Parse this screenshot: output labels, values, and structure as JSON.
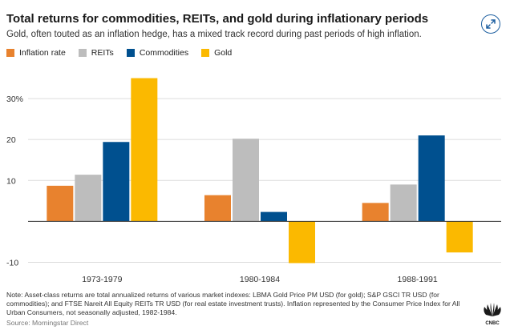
{
  "header": {
    "title": "Total returns for commodities, REITs, and gold during inflationary periods",
    "subtitle": "Gold, often touted as an inflation hedge, has a mixed track record during past periods of high inflation."
  },
  "footer": {
    "note": "Note: Asset-class returns are total annualized returns of various market indexes: LBMA Gold Price PM USD (for gold); S&P GSCI TR USD (for commodities); and FTSE Nareit All Equity REITs TR USD (for real estate investment trusts). Inflation represented by the Consumer Price Index for All Urban Consumers, not seasonally adjusted, 1982-1984.",
    "source": "Source: Morningstar Direct",
    "logo_text": "CNBC"
  },
  "icons": {
    "expand": "expand-icon",
    "logo": "cnbc-peacock-icon"
  },
  "chart_data": {
    "type": "bar",
    "categories": [
      "1973-1979",
      "1980-1984",
      "1988-1991"
    ],
    "series": [
      {
        "name": "Inflation rate",
        "color": "#e8822e",
        "values": [
          8.7,
          6.4,
          4.5
        ]
      },
      {
        "name": "REITs",
        "color": "#bdbdbd",
        "values": [
          11.4,
          20.2,
          9.0
        ]
      },
      {
        "name": "Commodities",
        "color": "#00508f",
        "values": [
          19.4,
          2.3,
          21.0
        ]
      },
      {
        "name": "Gold",
        "color": "#fbb900",
        "values": [
          35.0,
          -10.2,
          -7.6
        ]
      }
    ],
    "yticks": [
      -10,
      10,
      20,
      30
    ],
    "ytick_labels": [
      "-10",
      "10",
      "20",
      "30%"
    ],
    "ylim": [
      -10.5,
      35.5
    ],
    "legend_position": "top-left",
    "grid": true
  }
}
